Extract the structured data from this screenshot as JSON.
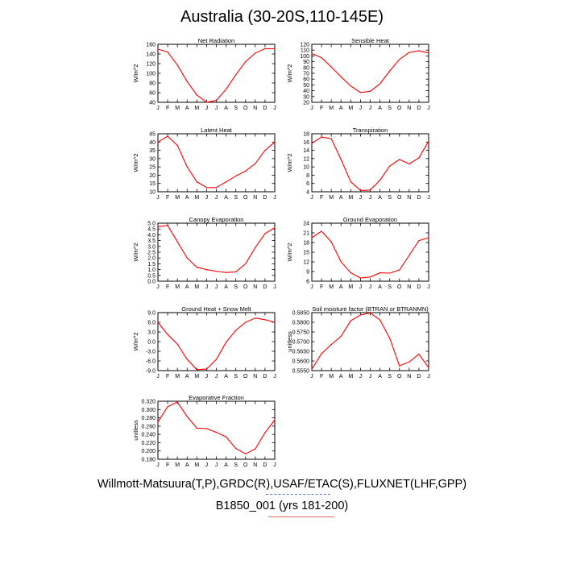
{
  "title": "Australia (30-20S,110-145E)",
  "footer": {
    "line1": "Willmott-Matsuura(T,P),GRDC(R),USAF/ETAC(S),FLUXNET(LHF,GPP)",
    "line2": "B1850_001 (yrs 181-200)"
  },
  "colors": {
    "series": "#ff0000",
    "footer_blue": "#5b6fd6",
    "footer_red": "#e46a6a"
  },
  "chart_data": [
    {
      "type": "line",
      "title": "Net Radiation",
      "ylabel": "W/m^2",
      "categories": [
        "J",
        "F",
        "M",
        "A",
        "M",
        "J",
        "J",
        "A",
        "S",
        "O",
        "N",
        "D",
        "J"
      ],
      "values": [
        150,
        144,
        117,
        83,
        55,
        40,
        44,
        67,
        97,
        124,
        142,
        151,
        151
      ],
      "ylim": [
        40,
        160
      ],
      "yticks": [
        "40",
        "60",
        "80",
        "100",
        "120",
        "140",
        "160"
      ]
    },
    {
      "type": "line",
      "title": "Sensible Heat",
      "ylabel": "W/m^2",
      "categories": [
        "J",
        "F",
        "M",
        "A",
        "M",
        "J",
        "J",
        "A",
        "S",
        "O",
        "N",
        "D",
        "J"
      ],
      "values": [
        104,
        97,
        81,
        64,
        48,
        37,
        39,
        52,
        74,
        94,
        106,
        109,
        105
      ],
      "ylim": [
        20,
        120
      ],
      "yticks": [
        "20",
        "30",
        "40",
        "50",
        "60",
        "70",
        "80",
        "90",
        "100",
        "110",
        "120"
      ]
    },
    {
      "type": "line",
      "title": "Latent Heat",
      "ylabel": "W/m^2",
      "categories": [
        "J",
        "F",
        "M",
        "A",
        "M",
        "J",
        "J",
        "A",
        "S",
        "O",
        "N",
        "D",
        "J"
      ],
      "values": [
        40,
        43.5,
        38,
        25,
        16,
        12.5,
        12.5,
        16,
        19.5,
        22.5,
        27,
        35,
        40
      ],
      "ylim": [
        10,
        45
      ],
      "yticks": [
        "10",
        "15",
        "20",
        "25",
        "30",
        "35",
        "40",
        "45"
      ]
    },
    {
      "type": "line",
      "title": "Transpiration",
      "ylabel": "W/m^2",
      "categories": [
        "J",
        "F",
        "M",
        "A",
        "M",
        "J",
        "J",
        "A",
        "S",
        "O",
        "N",
        "D",
        "J"
      ],
      "values": [
        15.7,
        17.2,
        16.8,
        11.8,
        6.4,
        4.3,
        4.4,
        6.8,
        10.2,
        11.8,
        10.7,
        12.2,
        16.2
      ],
      "ylim": [
        4,
        18
      ],
      "yticks": [
        "4",
        "6",
        "8",
        "10",
        "12",
        "14",
        "16",
        "18"
      ]
    },
    {
      "type": "line",
      "title": "Canopy Evaporation",
      "ylabel": "W/m^2",
      "categories": [
        "J",
        "F",
        "M",
        "A",
        "M",
        "J",
        "J",
        "A",
        "S",
        "O",
        "N",
        "D",
        "J"
      ],
      "values": [
        4.7,
        4.8,
        3.4,
        2.0,
        1.2,
        1.0,
        0.85,
        0.75,
        0.8,
        1.5,
        2.9,
        4.1,
        4.6
      ],
      "ylim": [
        0,
        5
      ],
      "yticks": [
        "0.0",
        "0.5",
        "1.0",
        "1.5",
        "2.0",
        "2.5",
        "3.0",
        "3.5",
        "4.0",
        "4.5",
        "5.0"
      ]
    },
    {
      "type": "line",
      "title": "Ground Evaporation",
      "ylabel": "W/m^2",
      "categories": [
        "J",
        "F",
        "M",
        "A",
        "M",
        "J",
        "J",
        "A",
        "S",
        "O",
        "N",
        "D",
        "J"
      ],
      "values": [
        19.5,
        21.5,
        18.2,
        12.0,
        8.6,
        7.0,
        7.3,
        8.6,
        8.5,
        9.5,
        14.0,
        18.6,
        19.5
      ],
      "ylim": [
        6,
        24
      ],
      "yticks": [
        "6",
        "9",
        "12",
        "15",
        "18",
        "21",
        "24"
      ]
    },
    {
      "type": "line",
      "title": "Ground Heat + Snow Melt",
      "ylabel": "W/m^2",
      "categories": [
        "J",
        "F",
        "M",
        "A",
        "M",
        "J",
        "J",
        "A",
        "S",
        "O",
        "N",
        "D",
        "J"
      ],
      "values": [
        6.0,
        2.2,
        -0.8,
        -5.5,
        -8.7,
        -8.5,
        -5.5,
        -0.2,
        3.5,
        6.0,
        7.3,
        6.8,
        6.0
      ],
      "ylim": [
        -9,
        9
      ],
      "yticks": [
        "-9.0",
        "-6.0",
        "-3.0",
        "0.0",
        "3.0",
        "6.0",
        "9.0"
      ]
    },
    {
      "type": "line",
      "title": "Soil moisture factor (BTRAN or BTRANMN)",
      "ylabel": "unitless",
      "categories": [
        "J",
        "F",
        "M",
        "A",
        "M",
        "J",
        "J",
        "A",
        "S",
        "O",
        "N",
        "D",
        "J"
      ],
      "values": [
        0.5558,
        0.5638,
        0.5685,
        0.5728,
        0.5808,
        0.5838,
        0.5848,
        0.5812,
        0.5718,
        0.5575,
        0.5595,
        0.5635,
        0.5565
      ],
      "ylim": [
        0.555,
        0.585
      ],
      "yticks": [
        "0.5550",
        "0.5600",
        "0.5650",
        "0.5700",
        "0.5750",
        "0.5800",
        "0.5850"
      ]
    },
    {
      "type": "line",
      "title": "Evaporative Fraction",
      "ylabel": "unitless",
      "categories": [
        "J",
        "F",
        "M",
        "A",
        "M",
        "J",
        "J",
        "A",
        "S",
        "O",
        "N",
        "D",
        "J"
      ],
      "values": [
        0.27,
        0.307,
        0.318,
        0.283,
        0.255,
        0.254,
        0.245,
        0.234,
        0.206,
        0.193,
        0.205,
        0.244,
        0.275
      ],
      "ylim": [
        0.18,
        0.32
      ],
      "yticks": [
        "0.180",
        "0.200",
        "0.220",
        "0.240",
        "0.260",
        "0.280",
        "0.300",
        "0.320"
      ]
    }
  ]
}
